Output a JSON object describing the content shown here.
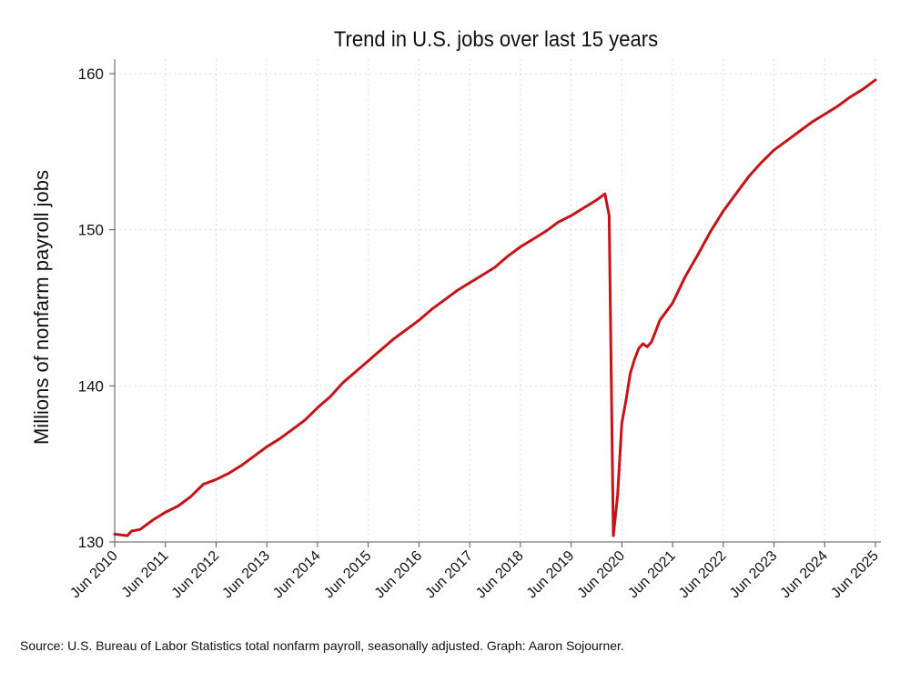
{
  "page": {
    "title": "Trend in U.S. jobs over last 15 years",
    "source": "Source: U.S. Bureau of Labor Statistics total nonfarm payroll, seasonally adjusted. Graph: Aaron Sojourner."
  },
  "chart_data": {
    "type": "line",
    "title": "Trend in U.S. jobs over last 15 years",
    "xlabel": "",
    "ylabel": "Millions of nonfarm payroll jobs",
    "ylim": [
      130,
      160
    ],
    "yticks": [
      130,
      140,
      150,
      160
    ],
    "xlim": [
      "2010-06",
      "2025-06"
    ],
    "xticks": [
      "2010-06",
      "2011-06",
      "2012-06",
      "2013-06",
      "2014-06",
      "2015-06",
      "2016-06",
      "2017-06",
      "2018-06",
      "2019-06",
      "2020-06",
      "2021-06",
      "2022-06",
      "2023-06",
      "2024-06",
      "2025-06"
    ],
    "xtick_labels": [
      "Jun 2010",
      "Jun 2011",
      "Jun 2012",
      "Jun 2013",
      "Jun 2014",
      "Jun 2015",
      "Jun 2016",
      "Jun 2017",
      "Jun 2018",
      "Jun 2019",
      "Jun 2020",
      "Jun 2021",
      "Jun 2022",
      "Jun 2023",
      "Jun 2024",
      "Jun 2025"
    ],
    "grid": true,
    "line_color": "#c41418",
    "series": [
      {
        "points": [
          [
            "2010-06",
            130.5
          ],
          [
            "2010-09",
            130.4
          ],
          [
            "2010-10",
            130.7
          ],
          [
            "2010-12",
            130.8
          ],
          [
            "2011-03",
            131.4
          ],
          [
            "2011-06",
            131.9
          ],
          [
            "2011-09",
            132.3
          ],
          [
            "2011-12",
            132.9
          ],
          [
            "2012-03",
            133.7
          ],
          [
            "2012-06",
            134.0
          ],
          [
            "2012-09",
            134.4
          ],
          [
            "2012-12",
            134.9
          ],
          [
            "2013-03",
            135.5
          ],
          [
            "2013-06",
            136.1
          ],
          [
            "2013-09",
            136.6
          ],
          [
            "2013-12",
            137.2
          ],
          [
            "2014-03",
            137.8
          ],
          [
            "2014-06",
            138.6
          ],
          [
            "2014-09",
            139.3
          ],
          [
            "2014-12",
            140.2
          ],
          [
            "2015-03",
            140.9
          ],
          [
            "2015-06",
            141.6
          ],
          [
            "2015-09",
            142.3
          ],
          [
            "2015-12",
            143.0
          ],
          [
            "2016-03",
            143.6
          ],
          [
            "2016-06",
            144.2
          ],
          [
            "2016-09",
            144.9
          ],
          [
            "2016-12",
            145.5
          ],
          [
            "2017-03",
            146.1
          ],
          [
            "2017-06",
            146.6
          ],
          [
            "2017-09",
            147.1
          ],
          [
            "2017-12",
            147.6
          ],
          [
            "2018-03",
            148.3
          ],
          [
            "2018-06",
            148.9
          ],
          [
            "2018-09",
            149.4
          ],
          [
            "2018-12",
            149.9
          ],
          [
            "2019-03",
            150.5
          ],
          [
            "2019-06",
            150.9
          ],
          [
            "2019-09",
            151.4
          ],
          [
            "2019-12",
            151.9
          ],
          [
            "2020-02",
            152.3
          ],
          [
            "2020-03",
            150.9
          ],
          [
            "2020-04",
            130.4
          ],
          [
            "2020-05",
            133.0
          ],
          [
            "2020-06",
            137.6
          ],
          [
            "2020-07",
            139.1
          ],
          [
            "2020-08",
            140.8
          ],
          [
            "2020-09",
            141.7
          ],
          [
            "2020-10",
            142.4
          ],
          [
            "2020-11",
            142.7
          ],
          [
            "2020-12",
            142.5
          ],
          [
            "2021-01",
            142.8
          ],
          [
            "2021-02",
            143.5
          ],
          [
            "2021-03",
            144.2
          ],
          [
            "2021-06",
            145.3
          ],
          [
            "2021-09",
            147.0
          ],
          [
            "2021-12",
            148.4
          ],
          [
            "2022-03",
            149.9
          ],
          [
            "2022-06",
            151.2
          ],
          [
            "2022-09",
            152.3
          ],
          [
            "2022-12",
            153.4
          ],
          [
            "2023-03",
            154.3
          ],
          [
            "2023-06",
            155.1
          ],
          [
            "2023-09",
            155.7
          ],
          [
            "2023-12",
            156.3
          ],
          [
            "2024-03",
            156.9
          ],
          [
            "2024-06",
            157.4
          ],
          [
            "2024-09",
            157.9
          ],
          [
            "2024-12",
            158.5
          ],
          [
            "2025-03",
            159.0
          ],
          [
            "2025-06",
            159.6
          ]
        ]
      }
    ]
  }
}
